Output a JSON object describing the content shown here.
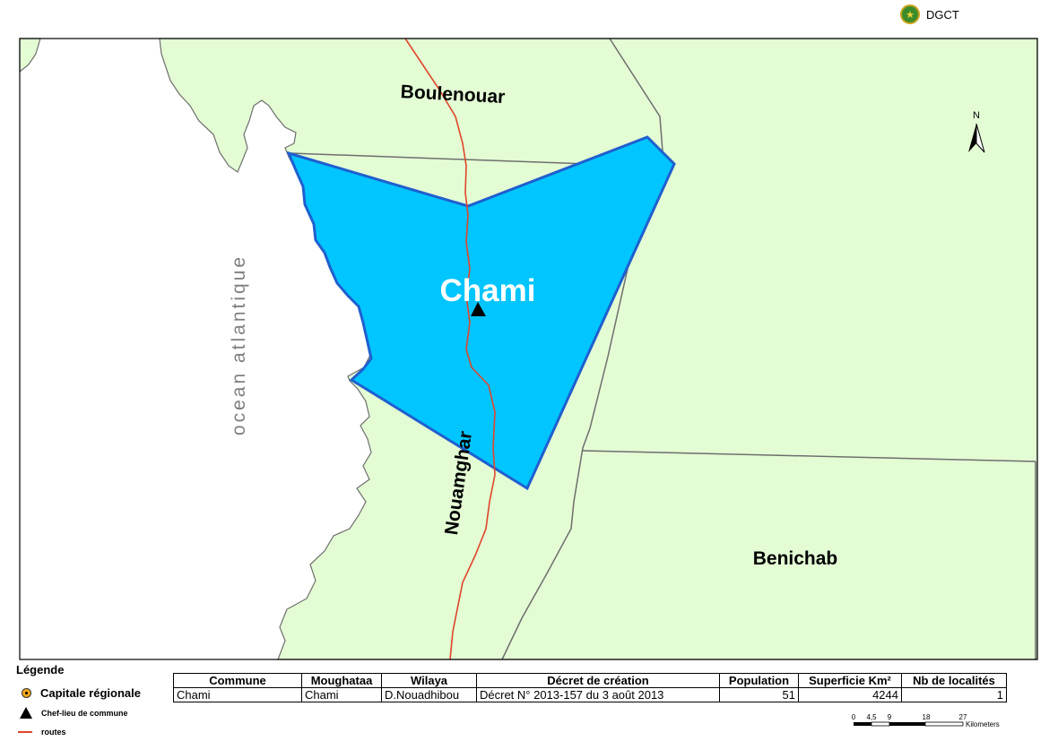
{
  "header": {
    "org_label": "DGCT",
    "logo_icon": "emblem-icon"
  },
  "map": {
    "colors": {
      "land": "#e3fcd4",
      "sea": "#ffffff",
      "commune_fill": "#00c5ff",
      "commune_border": "#1f5fcf",
      "road": "#e0462b",
      "boundary": "#6e6e6e"
    },
    "labels": {
      "commune": "Chami",
      "north": "Boulenouar",
      "south_west": "Nouamghar",
      "east": "Benichab",
      "ocean": "ocean atlantique"
    },
    "north_arrow_label": "N"
  },
  "legend": {
    "title": "Légende",
    "items": [
      {
        "label": "Capitale régionale",
        "symbol": "capital-circle"
      },
      {
        "label": "Chef-lieu de commune",
        "symbol": "black-triangle"
      },
      {
        "label": "routes",
        "symbol": "red-line"
      }
    ]
  },
  "table": {
    "headers": [
      "Commune",
      "Moughataa",
      "Wilaya",
      "Décret de création",
      "Population",
      "Superficie Km²",
      "Nb de localités"
    ],
    "row": [
      "Chami",
      "Chami",
      "D.Nouadhibou",
      "Décret N° 2013-157 du 3 août 2013",
      "51",
      "4244",
      "1"
    ]
  },
  "scale_bar": {
    "ticks": [
      "0",
      "4,5",
      "9",
      "18",
      "27"
    ],
    "unit": "Kilometers"
  }
}
